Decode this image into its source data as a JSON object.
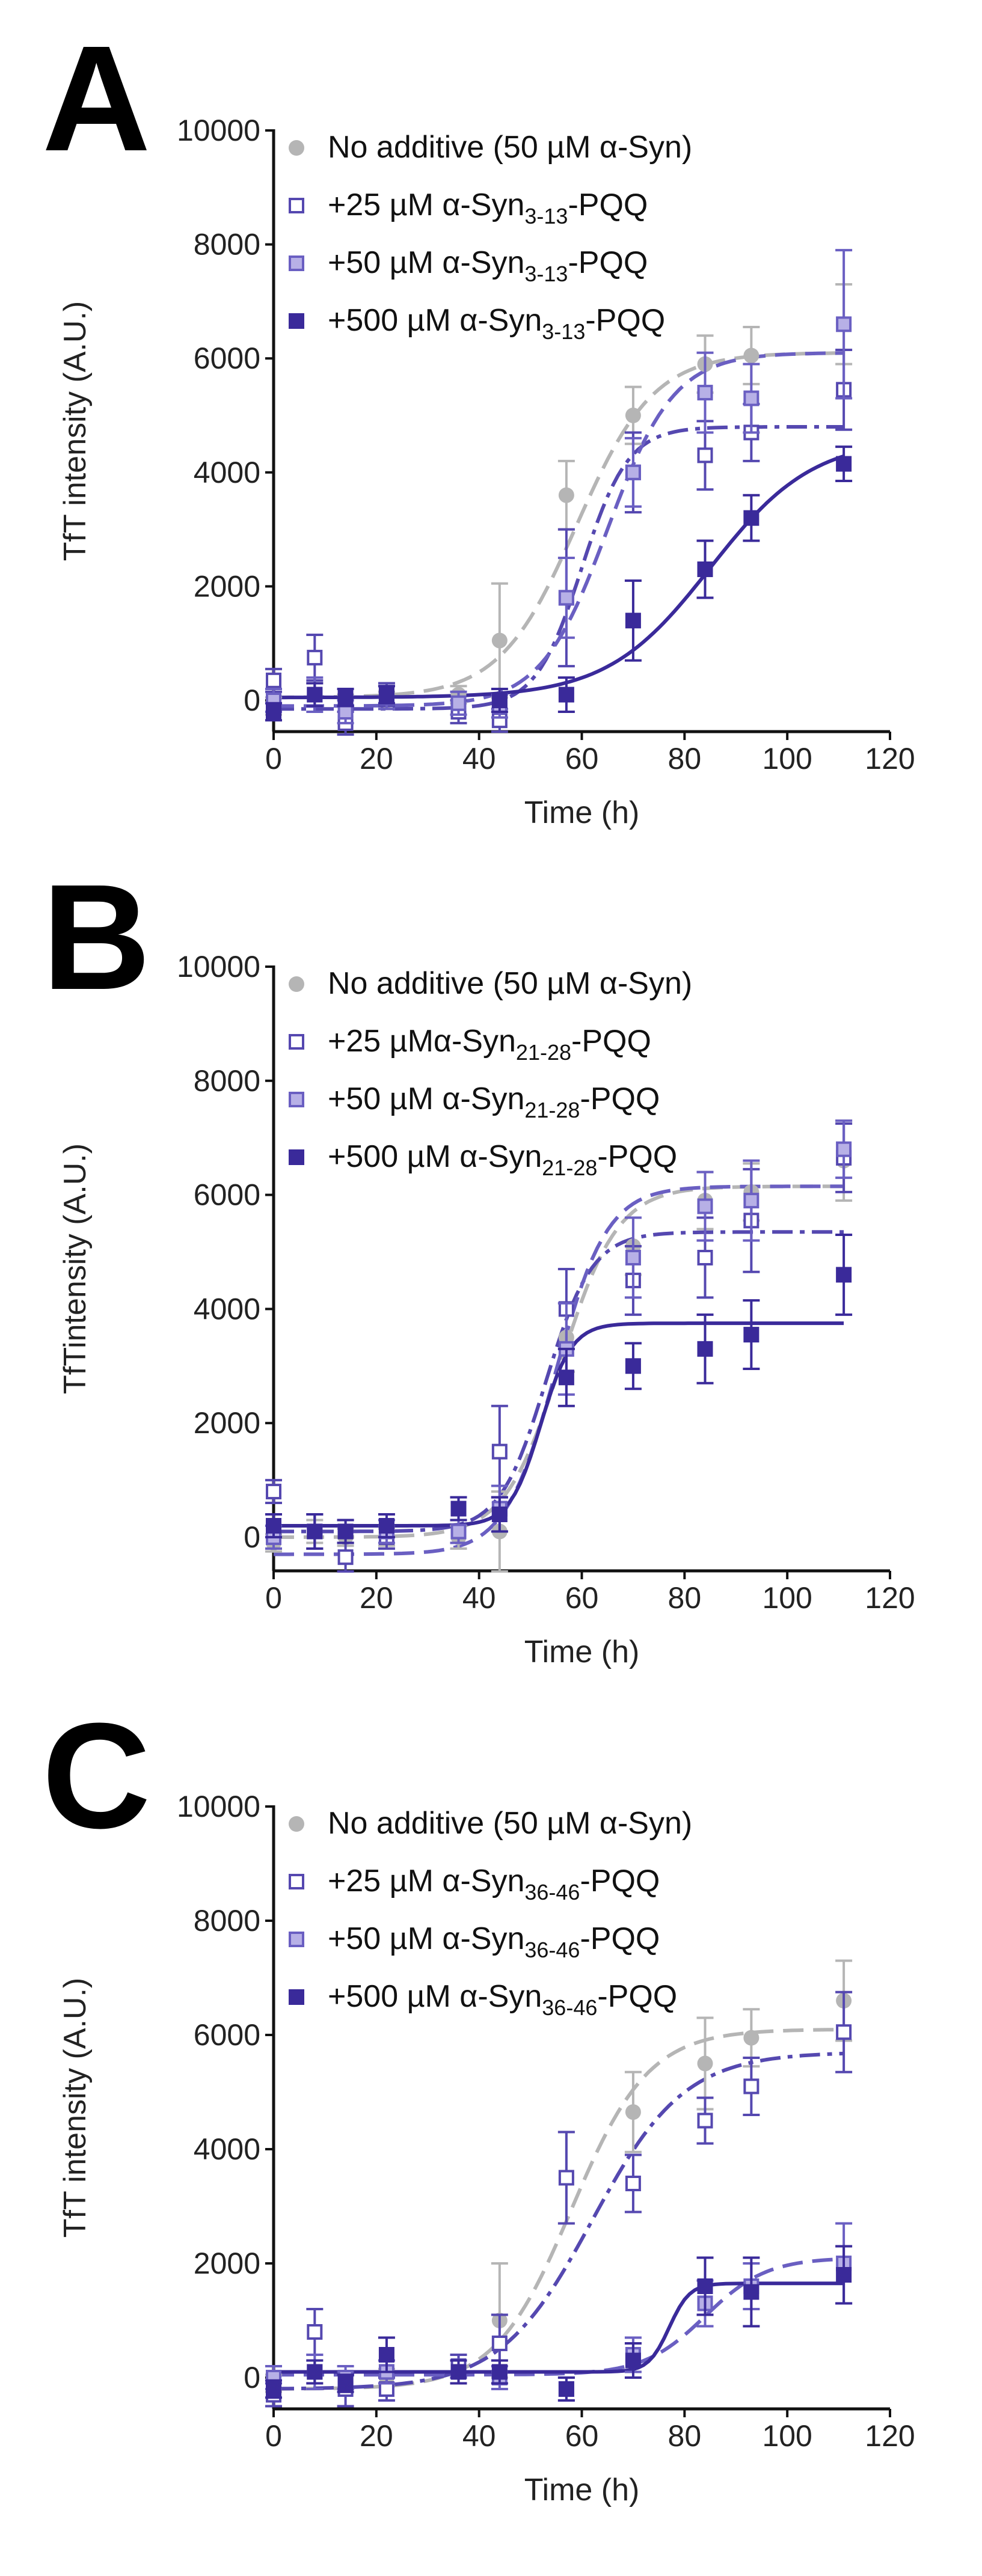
{
  "figure": {
    "colors": {
      "grey": "#b5b5b5",
      "violet_light": "#6a5fc2",
      "violet_mid": "#5548b0",
      "violet_dark": "#3a2a9a"
    }
  },
  "chart_data": [
    {
      "type": "scatter",
      "panel_label": "A",
      "xlabel": "Time (h)",
      "ylabel": "TfT intensity (A.U.)",
      "xlim": [
        0,
        120
      ],
      "ylim": [
        -500,
        10000
      ],
      "xticks": [
        0,
        20,
        40,
        60,
        80,
        100,
        120
      ],
      "yticks": [
        0,
        2000,
        4000,
        6000,
        8000,
        10000
      ],
      "legend_position": "top-left",
      "series": [
        {
          "name": "No additive (50 µM α-Syn)",
          "legend_prefix": "No additive (50 µM α-Syn)",
          "legend_sub": "",
          "legend_suffix": "",
          "marker": "circle",
          "line": "dashed",
          "color": "#b5b5b5",
          "x": [
            0,
            8,
            14,
            22,
            36,
            44,
            57,
            70,
            84,
            93,
            111
          ],
          "y": [
            -100,
            100,
            -50,
            0,
            100,
            1050,
            3600,
            5000,
            5900,
            6050,
            6600
          ],
          "err": [
            150,
            200,
            150,
            150,
            150,
            1000,
            600,
            500,
            500,
            500,
            700
          ],
          "fit": {
            "bottom": 50,
            "top": 6100,
            "mid": 59,
            "slope": 7.5
          }
        },
        {
          "name": "+25 µM α-Syn3-13-PQQ",
          "legend_prefix": "+25 µM α-Syn",
          "legend_sub": "3-13",
          "legend_suffix": "-PQQ",
          "marker": "square-open",
          "line": "dashdot",
          "color": "#5548b0",
          "x": [
            0,
            8,
            14,
            22,
            36,
            44,
            57,
            70,
            84,
            93,
            111
          ],
          "y": [
            350,
            750,
            -400,
            100,
            -200,
            -350,
            1800,
            4000,
            4300,
            4700,
            5450
          ],
          "err": [
            200,
            400,
            200,
            200,
            200,
            200,
            1200,
            700,
            600,
            500,
            700
          ],
          "fit": {
            "bottom": -150,
            "top": 4800,
            "mid": 60,
            "slope": 4.5
          }
        },
        {
          "name": "+50 µM α-Syn3-13-PQQ",
          "legend_prefix": "+50 µM α-Syn",
          "legend_sub": "3-13",
          "legend_suffix": "-PQQ",
          "marker": "square-mid",
          "line": "dashed",
          "color": "#6a5fc2",
          "x": [
            0,
            8,
            14,
            22,
            36,
            44,
            57,
            70,
            84,
            93,
            111
          ],
          "y": [
            0,
            100,
            -200,
            50,
            -50,
            -100,
            1800,
            4000,
            5400,
            5300,
            6600
          ],
          "err": [
            200,
            300,
            200,
            200,
            200,
            200,
            700,
            600,
            700,
            600,
            1300
          ],
          "fit": {
            "bottom": -100,
            "top": 6100,
            "mid": 65,
            "slope": 6.5
          }
        },
        {
          "name": "+500 µM α-Syn3-13-PQQ",
          "legend_prefix": "+500 µM α-Syn",
          "legend_sub": "3-13",
          "legend_suffix": "-PQQ",
          "marker": "square-filled",
          "line": "solid",
          "color": "#3a2a9a",
          "x": [
            0,
            8,
            14,
            22,
            44,
            57,
            70,
            84,
            93,
            111
          ],
          "y": [
            -200,
            100,
            50,
            100,
            0,
            100,
            1400,
            2300,
            3200,
            4150
          ],
          "err": [
            150,
            200,
            150,
            150,
            200,
            300,
            700,
            500,
            400,
            300
          ],
          "fit": {
            "bottom": 50,
            "top": 4600,
            "mid": 85,
            "slope": 10
          }
        }
      ]
    },
    {
      "type": "scatter",
      "panel_label": "B",
      "xlabel": "Time (h)",
      "ylabel": "TfTintensity (A.U.)",
      "xlim": [
        0,
        120
      ],
      "ylim": [
        -500,
        10000
      ],
      "xticks": [
        0,
        20,
        40,
        60,
        80,
        100,
        120
      ],
      "yticks": [
        0,
        2000,
        4000,
        6000,
        8000,
        10000
      ],
      "legend_position": "top-left",
      "series": [
        {
          "name": "No additive (50 µM α-Syn)",
          "legend_prefix": "No additive (50 µM α-Syn)",
          "legend_sub": "",
          "legend_suffix": "",
          "marker": "circle",
          "line": "dashed",
          "color": "#b5b5b5",
          "x": [
            0,
            8,
            14,
            22,
            36,
            44,
            57,
            70,
            84,
            93,
            111
          ],
          "y": [
            -100,
            100,
            0,
            0,
            0,
            100,
            3500,
            5100,
            5900,
            6050,
            6600
          ],
          "err": [
            150,
            200,
            150,
            150,
            200,
            700,
            600,
            500,
            500,
            500,
            700
          ],
          "fit": {
            "bottom": 0,
            "top": 6150,
            "mid": 56,
            "slope": 5.5
          }
        },
        {
          "name": "+25 µMα-Syn21-28-PQQ",
          "legend_prefix": "+25 µMα-Syn",
          "legend_sub": "21-28",
          "legend_suffix": "-PQQ",
          "marker": "square-open",
          "line": "dashdot",
          "color": "#5548b0",
          "x": [
            0,
            8,
            14,
            22,
            36,
            44,
            57,
            70,
            84,
            93,
            111
          ],
          "y": [
            800,
            100,
            -350,
            0,
            100,
            1500,
            4000,
            4500,
            4900,
            5550,
            6650
          ],
          "err": [
            200,
            300,
            250,
            200,
            200,
            800,
            700,
            600,
            700,
            900,
            600
          ],
          "fit": {
            "bottom": 100,
            "top": 5350,
            "mid": 53,
            "slope": 4.5
          }
        },
        {
          "name": "+50 µM α-Syn21-28-PQQ",
          "legend_prefix": "+50 µM α-Syn",
          "legend_sub": "21-28",
          "legend_suffix": "-PQQ",
          "marker": "square-mid",
          "line": "dashed",
          "color": "#6a5fc2",
          "x": [
            0,
            8,
            14,
            22,
            36,
            44,
            57,
            70,
            84,
            93,
            111
          ],
          "y": [
            0,
            100,
            100,
            100,
            100,
            500,
            3300,
            4900,
            5800,
            5900,
            6800
          ],
          "err": [
            200,
            300,
            200,
            200,
            200,
            400,
            800,
            700,
            600,
            700,
            500
          ],
          "fit": {
            "bottom": -300,
            "top": 6150,
            "mid": 55,
            "slope": 5
          }
        },
        {
          "name": "+500 µM α-Syn21-28-PQQ",
          "legend_prefix": "+500 µM α-Syn",
          "legend_sub": "21-28",
          "legend_suffix": "-PQQ",
          "marker": "square-filled",
          "line": "solid",
          "color": "#3a2a9a",
          "x": [
            0,
            8,
            14,
            22,
            36,
            44,
            57,
            70,
            84,
            93,
            111
          ],
          "y": [
            200,
            100,
            100,
            200,
            500,
            400,
            2800,
            3000,
            3300,
            3550,
            4600
          ],
          "err": [
            200,
            300,
            200,
            200,
            200,
            300,
            500,
            400,
            600,
            600,
            700
          ],
          "fit": {
            "bottom": 200,
            "top": 3750,
            "mid": 52,
            "slope": 3
          }
        }
      ]
    },
    {
      "type": "scatter",
      "panel_label": "C",
      "xlabel": "Time (h)",
      "ylabel": "TfT intensity (A.U.)",
      "xlim": [
        0,
        120
      ],
      "ylim": [
        -500,
        10000
      ],
      "xticks": [
        0,
        20,
        40,
        60,
        80,
        100,
        120
      ],
      "yticks": [
        0,
        2000,
        4000,
        6000,
        8000,
        10000
      ],
      "legend_position": "top-left",
      "series": [
        {
          "name": "No additive (50 µM α-Syn)",
          "legend_prefix": "No additive (50 µM α-Syn)",
          "legend_sub": "",
          "legend_suffix": "",
          "marker": "circle",
          "line": "dashed",
          "color": "#b5b5b5",
          "x": [
            0,
            8,
            14,
            22,
            36,
            44,
            57,
            70,
            84,
            93,
            111
          ],
          "y": [
            -100,
            100,
            -50,
            0,
            100,
            1000,
            3500,
            4650,
            5500,
            5950,
            6600
          ],
          "err": [
            150,
            200,
            150,
            150,
            200,
            1000,
            800,
            700,
            800,
            500,
            700
          ],
          "fit": {
            "bottom": -200,
            "top": 6100,
            "mid": 58,
            "slope": 7.5
          }
        },
        {
          "name": "+25 µM α-Syn36-46-PQQ",
          "legend_prefix": "+25 µM α-Syn",
          "legend_sub": "36-46",
          "legend_suffix": "-PQQ",
          "marker": "square-open",
          "line": "dashdot",
          "color": "#5548b0",
          "x": [
            0,
            8,
            14,
            22,
            36,
            44,
            57,
            70,
            84,
            93,
            111
          ],
          "y": [
            -300,
            800,
            -200,
            -200,
            200,
            600,
            3500,
            3400,
            4500,
            5100,
            6050
          ],
          "err": [
            200,
            400,
            300,
            200,
            200,
            500,
            800,
            500,
            400,
            500,
            700
          ],
          "fit": {
            "bottom": -200,
            "top": 5700,
            "mid": 62,
            "slope": 9
          }
        },
        {
          "name": "+50 µM α-Syn36-46-PQQ",
          "legend_prefix": "+50 µM α-Syn",
          "legend_sub": "36-46",
          "legend_suffix": "-PQQ",
          "marker": "square-mid",
          "line": "dashed",
          "color": "#6a5fc2",
          "x": [
            0,
            8,
            14,
            22,
            36,
            44,
            57,
            70,
            84,
            93,
            111
          ],
          "y": [
            0,
            100,
            0,
            100,
            100,
            0,
            -200,
            400,
            1300,
            1600,
            2000
          ],
          "err": [
            200,
            300,
            200,
            200,
            200,
            200,
            200,
            300,
            400,
            400,
            700
          ],
          "fit": {
            "bottom": 50,
            "top": 2100,
            "mid": 84,
            "slope": 6
          }
        },
        {
          "name": "+500 µM α-Syn36-46-PQQ",
          "legend_prefix": "+500 µM α-Syn",
          "legend_sub": "36-46",
          "legend_suffix": "-PQQ",
          "marker": "square-filled",
          "line": "solid",
          "color": "#3a2a9a",
          "x": [
            0,
            8,
            14,
            22,
            36,
            44,
            57,
            70,
            84,
            93,
            111
          ],
          "y": [
            -200,
            100,
            -100,
            400,
            100,
            100,
            -200,
            300,
            1600,
            1500,
            1800
          ],
          "err": [
            150,
            200,
            150,
            300,
            200,
            200,
            200,
            300,
            500,
            600,
            500
          ],
          "fit": {
            "bottom": 100,
            "top": 1650,
            "mid": 77,
            "slope": 2
          }
        }
      ]
    }
  ]
}
